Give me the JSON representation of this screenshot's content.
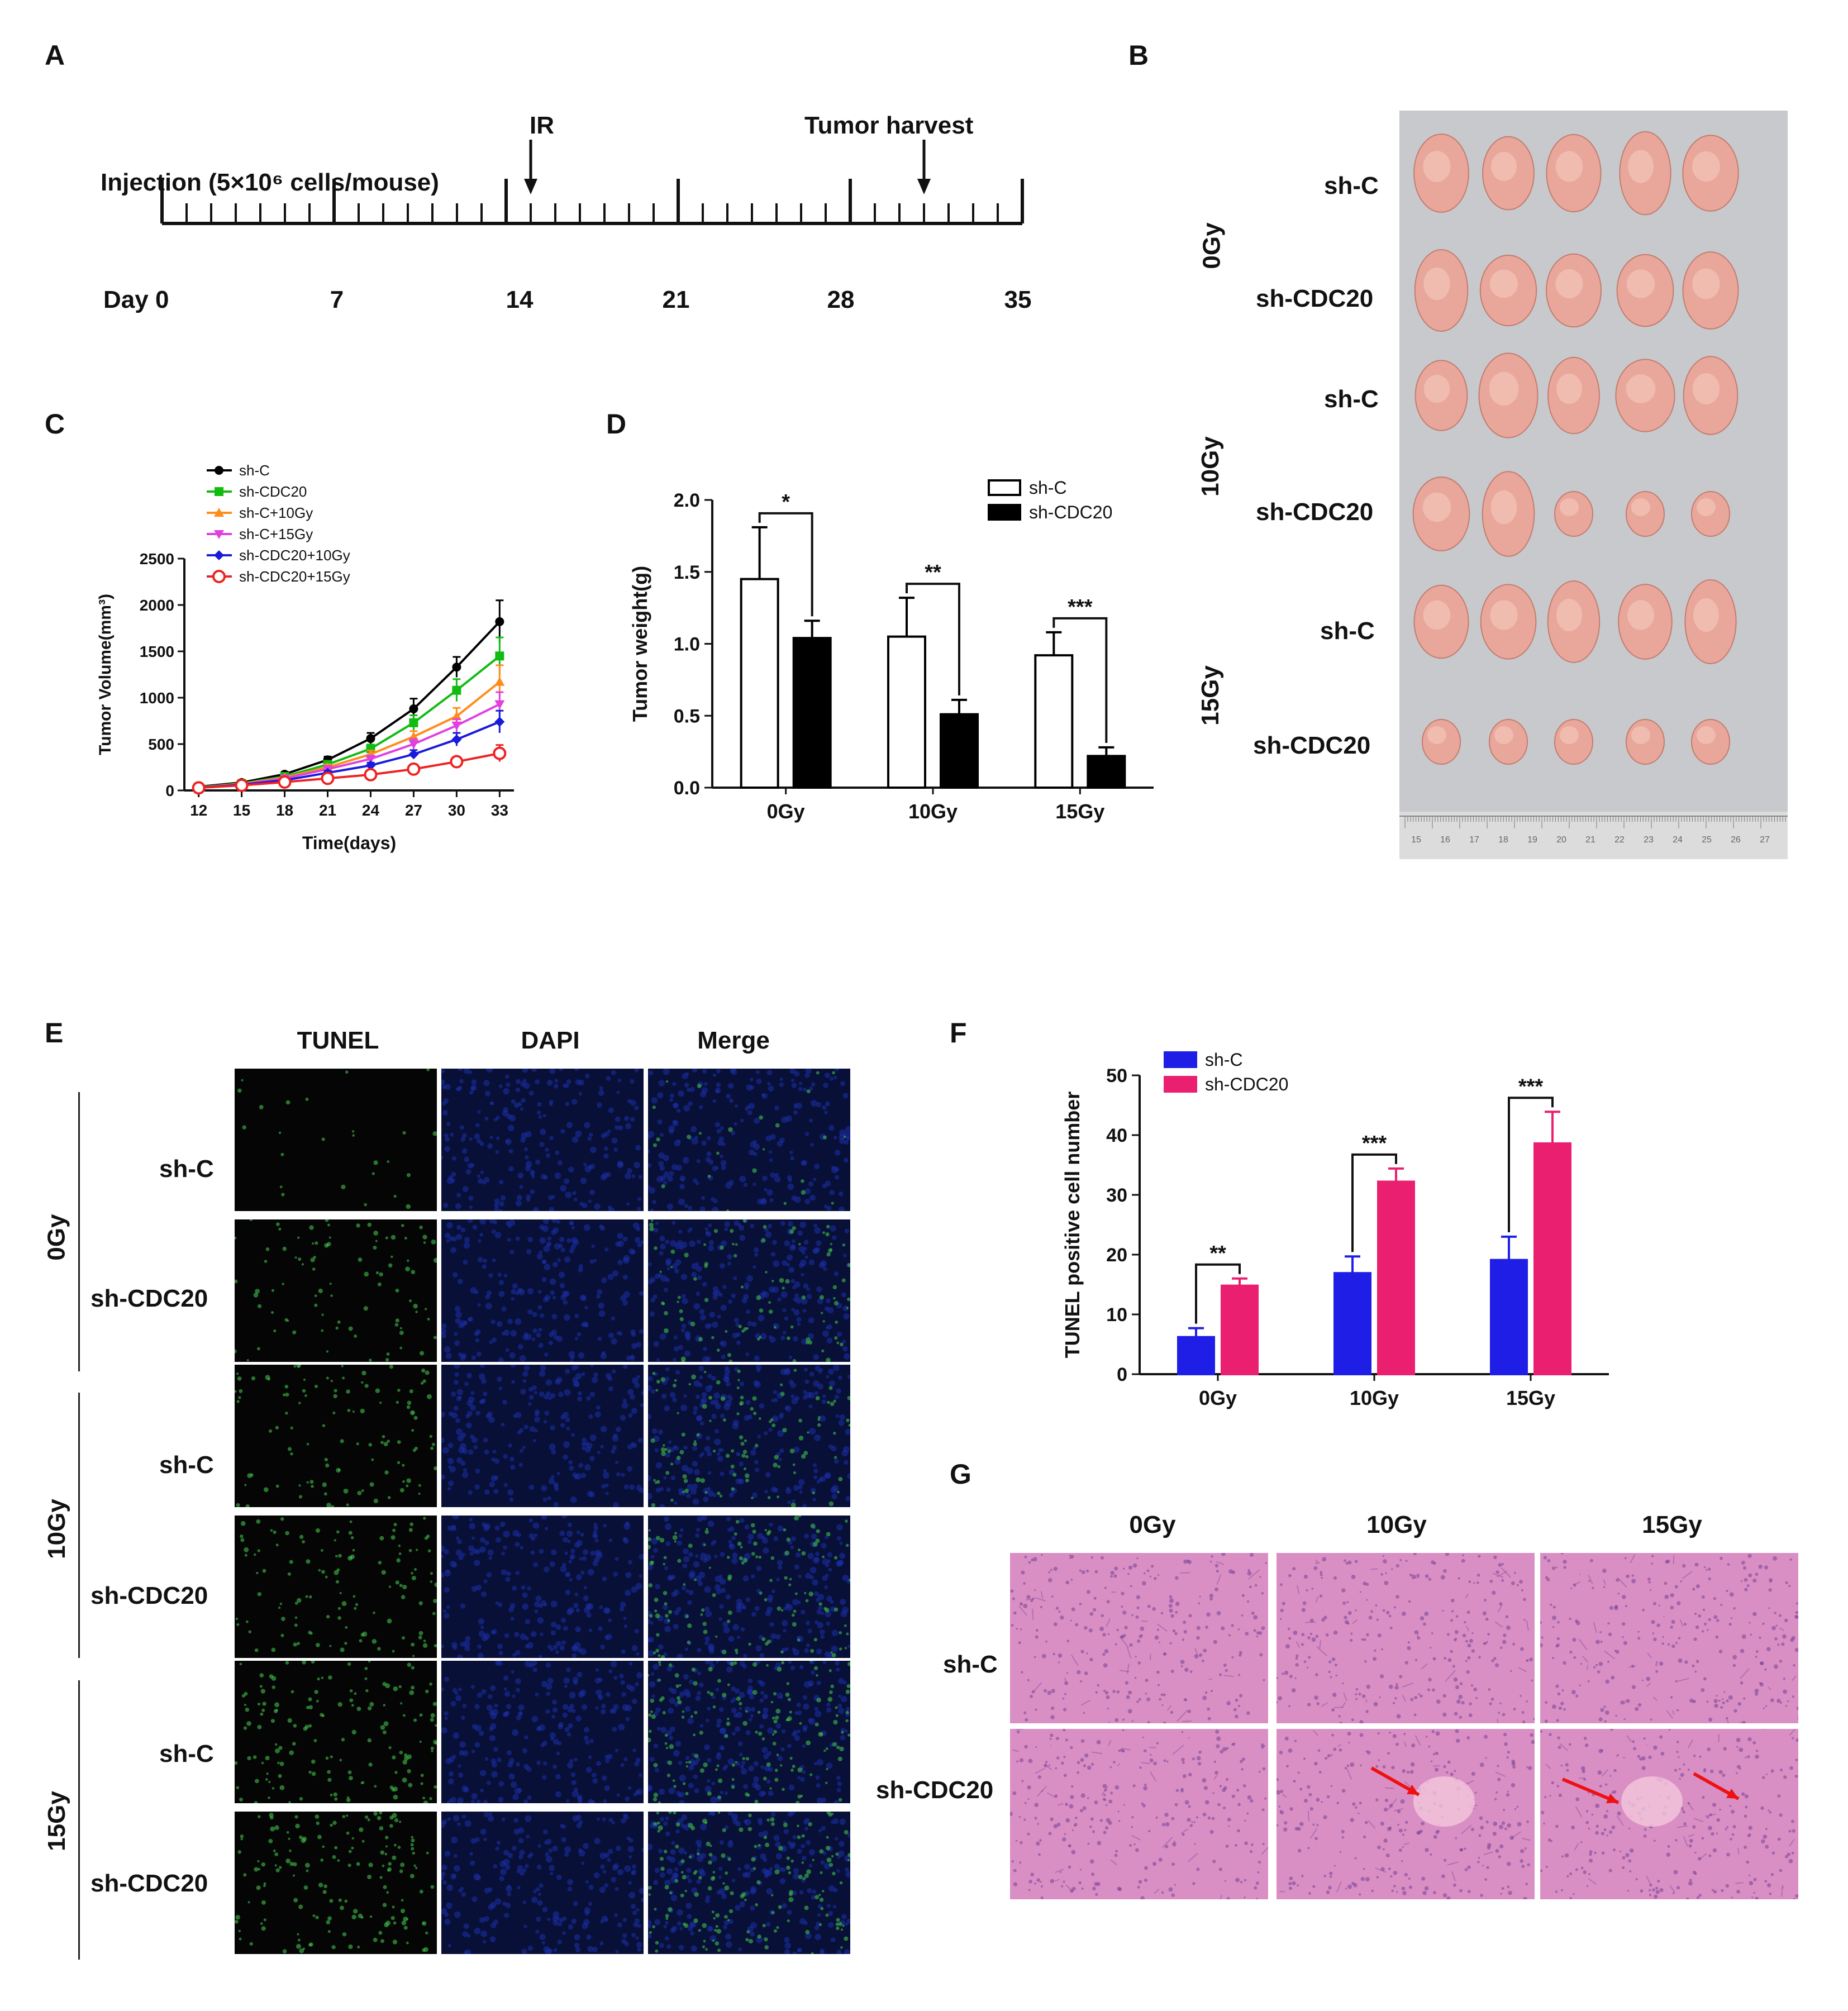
{
  "panel_labels": [
    "A",
    "B",
    "C",
    "D",
    "E",
    "F",
    "G"
  ],
  "colors": {
    "sh_c": "#000000",
    "sh_cdc20": "#11bb11",
    "sh_c_10": "#ff8c1a",
    "sh_c_15": "#e040e0",
    "sh_cdc20_10": "#1a1adb",
    "sh_cdc20_15": "#ee2222",
    "bar_blue": "#1e1ee6",
    "bar_pink": "#ea1f6f",
    "tunel_bg": "#050505",
    "dapi_bg": "#081038",
    "he_bg": "#d98fc4",
    "arrow_red": "#ee1111"
  },
  "panel_a": {
    "injection_label": "Injection (5×10⁶ cells/mouse)",
    "ir_label": "IR",
    "harvest_label": "Tumor harvest",
    "day_labels": [
      "Day 0",
      "7",
      "14",
      "21",
      "28",
      "35"
    ],
    "day_values": [
      0,
      7,
      14,
      21,
      28,
      35
    ],
    "ir_day": 15,
    "harvest_day": 31
  },
  "panel_b": {
    "row_labels": [
      "sh-C",
      "sh-CDC20",
      "sh-C",
      "sh-CDC20",
      "sh-C",
      "sh-CDC20"
    ],
    "dose_labels": [
      "0Gy",
      "10Gy",
      "15Gy"
    ],
    "ruler_labels": [
      "15",
      "16",
      "17",
      "18",
      "19",
      "20",
      "21",
      "22",
      "23",
      "24",
      "25",
      "26",
      "27"
    ]
  },
  "panel_e": {
    "column_labels": [
      "TUNEL",
      "DAPI",
      "Merge"
    ],
    "row_labels": [
      "sh-C",
      "sh-CDC20",
      "sh-C",
      "sh-CDC20",
      "sh-C",
      "sh-CDC20"
    ],
    "dose_labels": [
      "0Gy",
      "10Gy",
      "15Gy"
    ]
  },
  "panel_g": {
    "column_labels": [
      "0Gy",
      "10Gy",
      "15Gy"
    ],
    "row_labels": [
      "sh-C",
      "sh-CDC20"
    ]
  },
  "chart_data": [
    {
      "id": "C",
      "type": "line",
      "xlabel": "Time(days)",
      "ylabel": "Tumor Volume(mm³)",
      "x": [
        12,
        15,
        18,
        21,
        24,
        27,
        30,
        33
      ],
      "ylim": [
        0,
        2500
      ],
      "yticks": [
        0,
        500,
        1000,
        1500,
        2000,
        2500
      ],
      "legend_position": "top-left",
      "series": [
        {
          "name": "sh-C",
          "values": [
            40,
            85,
            175,
            330,
            560,
            880,
            1330,
            1820
          ],
          "errors": [
            10,
            15,
            25,
            35,
            60,
            110,
            110,
            230
          ]
        },
        {
          "name": "sh-CDC20",
          "values": [
            35,
            75,
            150,
            280,
            450,
            730,
            1080,
            1450
          ],
          "errors": [
            10,
            12,
            20,
            30,
            45,
            80,
            120,
            200
          ]
        },
        {
          "name": "sh-C+10Gy",
          "values": [
            33,
            70,
            140,
            250,
            390,
            580,
            800,
            1170
          ],
          "errors": [
            10,
            12,
            20,
            30,
            40,
            60,
            90,
            180
          ]
        },
        {
          "name": "sh-C+15Gy",
          "values": [
            30,
            65,
            130,
            230,
            340,
            500,
            700,
            930
          ],
          "errors": [
            8,
            10,
            18,
            25,
            35,
            55,
            70,
            130
          ]
        },
        {
          "name": "sh-CDC20+10Gy",
          "values": [
            30,
            62,
            110,
            190,
            270,
            390,
            550,
            740
          ],
          "errors": [
            8,
            10,
            15,
            20,
            30,
            45,
            70,
            120
          ]
        },
        {
          "name": "sh-CDC20+15Gy",
          "values": [
            28,
            55,
            90,
            130,
            170,
            230,
            310,
            400
          ],
          "errors": [
            8,
            10,
            12,
            15,
            20,
            30,
            50,
            90
          ]
        }
      ]
    },
    {
      "id": "D",
      "type": "bar",
      "ylabel": "Tumor weight(g)",
      "categories": [
        "0Gy",
        "10Gy",
        "15Gy"
      ],
      "ylim": [
        0,
        2.0
      ],
      "yticks": [
        "0.0",
        "0.5",
        "1.0",
        "1.5",
        "2.0"
      ],
      "legend_position": "top-right",
      "series": [
        {
          "name": "sh-C",
          "values": [
            1.45,
            1.05,
            0.92
          ],
          "errors": [
            0.36,
            0.27,
            0.16
          ],
          "fill": "#ffffff"
        },
        {
          "name": "sh-CDC20",
          "values": [
            1.04,
            0.51,
            0.22
          ],
          "errors": [
            0.12,
            0.1,
            0.06
          ],
          "fill": "#000000"
        }
      ],
      "significance": [
        "*",
        "**",
        "***"
      ]
    },
    {
      "id": "F",
      "type": "bar",
      "ylabel": "TUNEL positive cell number",
      "categories": [
        "0Gy",
        "10Gy",
        "15Gy"
      ],
      "ylim": [
        0,
        50
      ],
      "yticks": [
        0,
        10,
        20,
        30,
        40,
        50
      ],
      "legend_position": "top-left",
      "series": [
        {
          "name": "sh-C",
          "values": [
            6.2,
            16.9,
            19.1
          ],
          "errors": [
            1.5,
            2.8,
            3.9
          ]
        },
        {
          "name": "sh-CDC20",
          "values": [
            14.8,
            32.2,
            38.6
          ],
          "errors": [
            1.2,
            2.2,
            5.3
          ]
        }
      ],
      "significance": [
        "**",
        "***",
        "***"
      ]
    }
  ]
}
